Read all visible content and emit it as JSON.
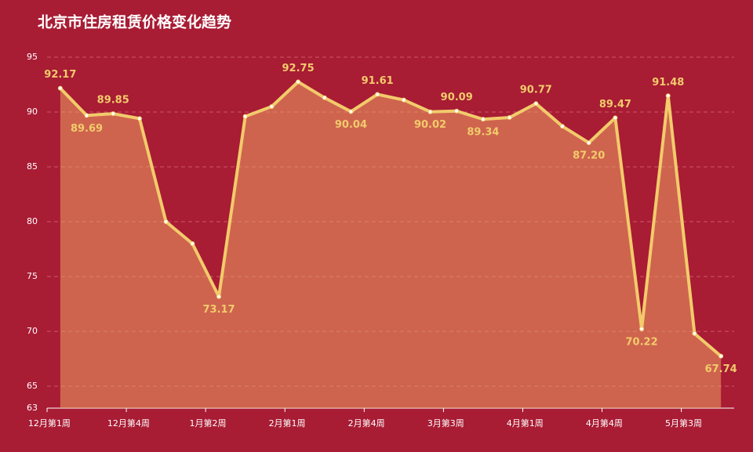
{
  "chart_data": {
    "type": "line",
    "title": "北京市住房租赁价格变化趋势",
    "categories": [
      "12月第1周",
      null,
      null,
      "12月第4周",
      null,
      null,
      "1月第2周",
      null,
      null,
      "2月第1周",
      null,
      null,
      "2月第4周",
      null,
      null,
      "3月第3周",
      null,
      null,
      "4月第1周",
      null,
      null,
      "4月第4周",
      null,
      null,
      "5月第3周",
      null
    ],
    "values": [
      92.17,
      89.69,
      89.85,
      89.4,
      80.0,
      78.0,
      73.17,
      89.6,
      90.5,
      92.75,
      91.3,
      90.04,
      91.61,
      91.1,
      90.02,
      90.09,
      89.34,
      89.5,
      90.77,
      88.7,
      87.2,
      89.47,
      70.22,
      91.48,
      69.8,
      67.74
    ],
    "value_labels": [
      "92.17",
      "89.69",
      "89.85",
      null,
      null,
      null,
      "73.17",
      null,
      null,
      "92.75",
      null,
      "90.04",
      "91.61",
      null,
      "90.02",
      "90.09",
      "89.34",
      null,
      "90.77",
      null,
      "87.20",
      "89.47",
      "70.22",
      "91.48",
      null,
      "67.74"
    ],
    "color": "#f2cb6b",
    "ylim": [
      63,
      95
    ],
    "yticks": [
      63,
      65,
      70,
      75,
      80,
      85,
      90,
      95
    ],
    "grid": true
  }
}
